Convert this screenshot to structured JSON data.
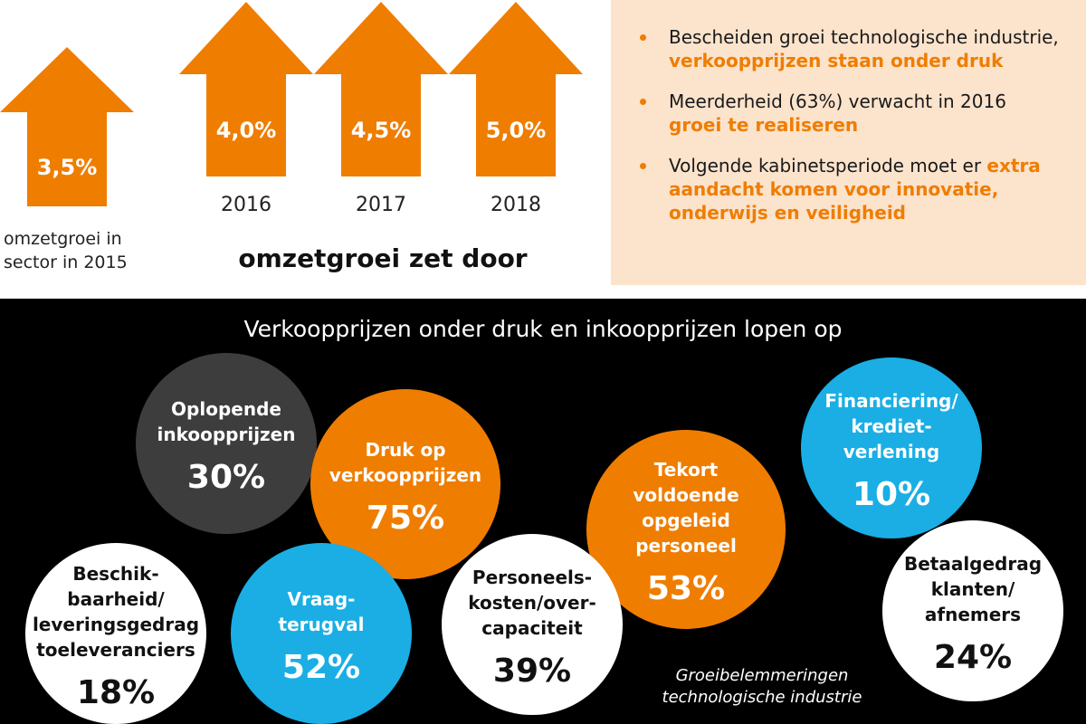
{
  "top": {
    "base": {
      "value": "3,5%",
      "caption": [
        "omzetgroei in",
        "sector in 2015"
      ]
    },
    "forecasts": [
      {
        "value": "4,0%",
        "year": "2016"
      },
      {
        "value": "4,5%",
        "year": "2017"
      },
      {
        "value": "5,0%",
        "year": "2018"
      }
    ],
    "headline": "omzetgroei zet door"
  },
  "bullets": [
    {
      "text": "Bescheiden groei technologische industrie, ",
      "highlight": "verkoopprijzen staan onder druk"
    },
    {
      "text": "Meerderheid (63%) verwacht in 2016 ",
      "highlight": "groei te realiseren"
    },
    {
      "text": "Volgende kabinetsperiode moet er ",
      "highlight": "extra aandacht komen voor innovatie, onderwijs en veiligheid"
    }
  ],
  "bottom": {
    "title": "Verkoopprijzen onder druk en inkoopprijzen lopen op",
    "bubbles": [
      {
        "lines": [
          "Oplopende",
          "inkoopprijzen"
        ],
        "value": "30%"
      },
      {
        "lines": [
          "Druk op",
          "verkoopprijzen"
        ],
        "value": "75%"
      },
      {
        "lines": [
          "Beschik-",
          "baarheid/",
          "leveringsgedrag",
          "toeleveranciers"
        ],
        "value": "18%"
      },
      {
        "lines": [
          "Vraag-",
          "terugval"
        ],
        "value": "52%"
      },
      {
        "lines": [
          "Personeels-",
          "kosten/over-",
          "capaciteit"
        ],
        "value": "39%"
      },
      {
        "lines": [
          "Tekort",
          "voldoende",
          "opgeleid",
          "personeel"
        ],
        "value": "53%"
      },
      {
        "lines": [
          "Financiering/",
          "krediet-",
          "verlening"
        ],
        "value": "10%"
      },
      {
        "lines": [
          "Betaalgedrag",
          "klanten/",
          "afnemers"
        ],
        "value": "24%"
      }
    ],
    "caption": [
      "Groeibelemmeringen",
      "technologische industrie"
    ]
  }
}
